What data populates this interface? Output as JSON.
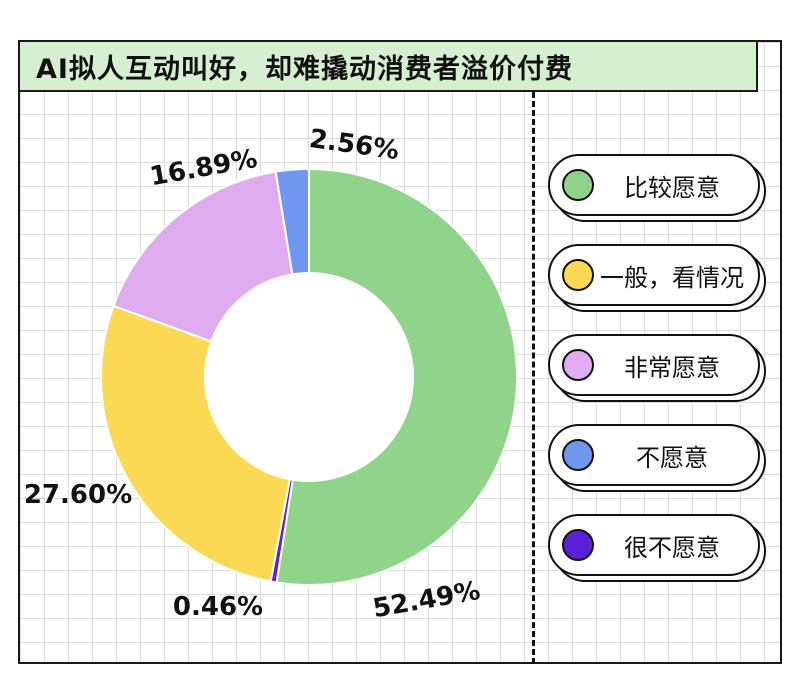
{
  "title": "AI拟人互动叫好，却难撬动消费者溢价付费",
  "chart_data": {
    "type": "pie",
    "donut": true,
    "slices": [
      {
        "label": "比较愿意",
        "value": 52.49,
        "value_label": "52.49%",
        "color": "#8fd48a"
      },
      {
        "label": "很不愿意",
        "value": 0.46,
        "value_label": "0.46%",
        "color": "#5b1fd8"
      },
      {
        "label": "一般，看情况",
        "value": 27.6,
        "value_label": "27.60%",
        "color": "#fbd954"
      },
      {
        "label": "非常愿意",
        "value": 16.89,
        "value_label": "16.89%",
        "color": "#dfacef"
      },
      {
        "label": "不愿意",
        "value": 2.56,
        "value_label": "2.56%",
        "color": "#6f97f0"
      }
    ]
  },
  "legend": [
    {
      "label": "比较愿意",
      "color": "#8fd48a"
    },
    {
      "label": "一般，看情况",
      "color": "#fbd954"
    },
    {
      "label": "非常愿意",
      "color": "#dfacef"
    },
    {
      "label": "不愿意",
      "color": "#6f97f0"
    },
    {
      "label": "很不愿意",
      "color": "#5b1fd8"
    }
  ]
}
